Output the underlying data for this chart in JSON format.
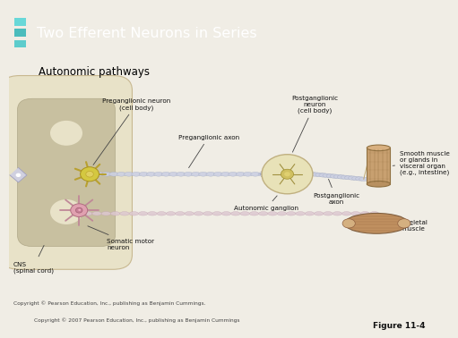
{
  "title": "Two Efferent Neurons in Series",
  "subtitle": "Autonomic pathways",
  "header_bg": "#2e8b8b",
  "header_text_color": "#ffffff",
  "body_bg": "#f0ede5",
  "copyright_inner": "Copyright © Pearson Education, Inc., publishing as Benjamin Cummings.",
  "copyright_outer": "Copyright © 2007 Pearson Education, Inc., publishing as Benjamin Cummings",
  "figure_label": "Figure 11-4",
  "labels": {
    "preganglionic_neuron": "Preganglionic neuron\n(cell body)",
    "preganglionic_axon": "Preganglionic axon",
    "postganglionic_neuron": "Postganglionic\nneuron\n(cell body)",
    "postganglionic_axon": "Postganglionic\naxon",
    "autonomic_ganglion": "Autonomic ganglion",
    "smooth_muscle": "Smooth muscle\nor glands in\nvisceral organ\n(e.g., intestine)",
    "skeletal_muscle": "Skeletal\nmuscle",
    "cns": "CNS\n(spinal cord)",
    "somatic_motor": "Somatic motor\nneuron"
  },
  "stripe_colors": [
    "#4fc4c4",
    "#3aacac",
    "#5ad0d0"
  ],
  "spinal_outer_color": "#e8e0c0",
  "spinal_inner_color": "#d4cab0",
  "spinal_gray_color": "#c0b898",
  "neuron1_color": "#d4c860",
  "neuron2_color": "#e8dea8",
  "soma_color": "#d8a0b0",
  "bead1_color": "#c8cce0",
  "bead2_color": "#d8c8d0",
  "muscle_color": "#c09060",
  "ganglion_color": "#e0d8a8"
}
